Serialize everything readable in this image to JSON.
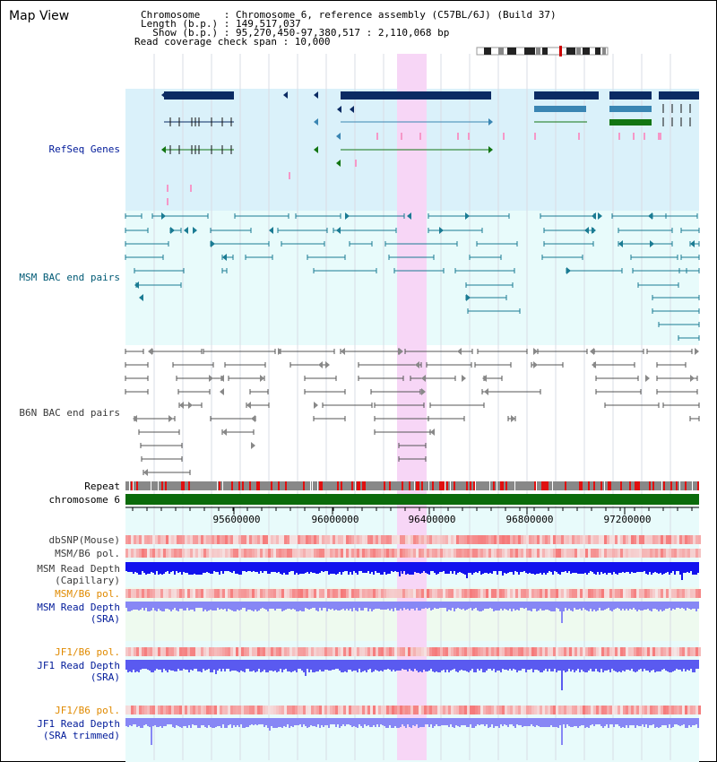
{
  "view_title": "Map View",
  "info_lines": {
    "chromosome": "Chromosome    : Chromosome 6, reference assembly (C57BL/6J) (Build 37)",
    "length": "Length (b.p.) : 149,517,037",
    "show": "  Show (b.p.) : 95,270,450-97,380,517 : 2,110,068 bp",
    "coverage": "Read coverage check span : 10,000"
  },
  "colors": {
    "refseq_bg": "#daf1fa",
    "msm_bac_bg": "#e8fbfb",
    "highlight": "#f7d6f6",
    "refseq_dark": "#0b2b63",
    "refseq_mid": "#3a86b3",
    "refseq_green": "#127512",
    "msm_line": "#1a7b93",
    "b6n_line": "#555555",
    "chrom_green": "#0b6b0b",
    "label_navy": "#001a99",
    "label_teal": "#005a75",
    "label_orange": "#e08a00",
    "label_gray": "#3a3a3a"
  },
  "tracks": {
    "refseq_label": "RefSeq Genes",
    "msm_bac_label": "MSM BAC end pairs",
    "b6n_bac_label": "B6N BAC end pairs",
    "repeat_label": "Repeat",
    "chromosome_label": "chromosome 6",
    "dbsnp_label": "dbSNP(Mouse)",
    "msm_b6_pol_label": "MSM/B6 pol.",
    "msm_depth_cap_label": "MSM Read Depth\n(Capillary)",
    "msm_b6_pol_label2": "MSM/B6 pol.",
    "msm_depth_sra_label": "MSM Read Depth\n(SRA)",
    "jf1_b6_pol_label": "JF1/B6 pol.",
    "jf1_depth_sra_label": "JF1 Read Depth\n(SRA)",
    "jf1_b6_pol_label2": "JF1/B6 pol.",
    "jf1_depth_trim_label": "JF1 Read Depth\n(SRA trimmed)"
  },
  "ruler": {
    "ticks": [
      "95600000",
      "96000000",
      "96400000",
      "96800000",
      "97200000"
    ]
  }
}
